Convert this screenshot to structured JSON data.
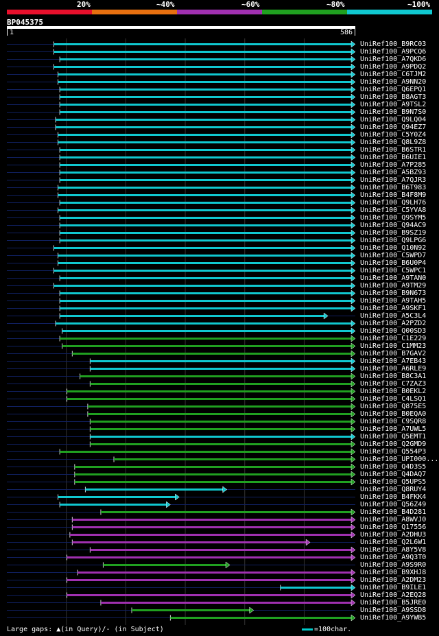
{
  "query_id": "BP045375",
  "colors": {
    "20": "#e8102c",
    "40": "#e87010",
    "60": "#a030b0",
    "80": "#20a020",
    "100": "#10c8d0",
    "query": "#ffffff",
    "background": "#000000",
    "unaligned": "#102060"
  },
  "legend": [
    {
      "label": "20%",
      "color": "#e8102c"
    },
    {
      "label": "~40%",
      "color": "#e87010"
    },
    {
      "label": "~60%",
      "color": "#a030b0"
    },
    {
      "label": "~80%",
      "color": "#20a020"
    },
    {
      "label": "~100%",
      "color": "#10c8d0"
    }
  ],
  "axis": {
    "start_label": "1",
    "end_label": "586"
  },
  "footer": {
    "gaps_text": "Large gaps: ▲(in Query)/- (in Subject)",
    "scale_text": "=100char."
  },
  "chart_data": {
    "type": "alignment",
    "query_length": 586,
    "hits": [
      {
        "name": "UniRef100_B9RC03",
        "start": 79,
        "end": 586,
        "identity": 100,
        "arrow": true
      },
      {
        "name": "UniRef100_A9PCQ6",
        "start": 79,
        "end": 586,
        "identity": 100,
        "arrow": true
      },
      {
        "name": "UniRef100_A7QKD6",
        "start": 89,
        "end": 586,
        "identity": 100,
        "arrow": true
      },
      {
        "name": "UniRef100_A9PDQ2",
        "start": 79,
        "end": 586,
        "identity": 100,
        "arrow": true
      },
      {
        "name": "UniRef100_C6TJM2",
        "start": 86,
        "end": 586,
        "identity": 100,
        "arrow": true
      },
      {
        "name": "UniRef100_A9NN20",
        "start": 86,
        "end": 586,
        "identity": 100,
        "arrow": true
      },
      {
        "name": "UniRef100_Q6EPQ1",
        "start": 89,
        "end": 586,
        "identity": 100,
        "arrow": true
      },
      {
        "name": "UniRef100_B8AGT3",
        "start": 89,
        "end": 586,
        "identity": 100,
        "arrow": true
      },
      {
        "name": "UniRef100_A9TSL2",
        "start": 89,
        "end": 586,
        "identity": 100,
        "arrow": true
      },
      {
        "name": "UniRef100_B9N7S0",
        "start": 89,
        "end": 586,
        "identity": 100,
        "arrow": true
      },
      {
        "name": "UniRef100_Q9LQ04",
        "start": 82,
        "end": 586,
        "identity": 100,
        "arrow": true
      },
      {
        "name": "UniRef100_Q94EZ7",
        "start": 82,
        "end": 586,
        "identity": 100,
        "arrow": true
      },
      {
        "name": "UniRef100_C5Y0Z4",
        "start": 86,
        "end": 586,
        "identity": 100,
        "arrow": true
      },
      {
        "name": "UniRef100_Q8L9Z8",
        "start": 86,
        "end": 586,
        "identity": 100,
        "arrow": true
      },
      {
        "name": "UniRef100_B6STR1",
        "start": 89,
        "end": 586,
        "identity": 100,
        "arrow": true
      },
      {
        "name": "UniRef100_B6UIE1",
        "start": 89,
        "end": 586,
        "identity": 100,
        "arrow": true
      },
      {
        "name": "UniRef100_A7P285",
        "start": 89,
        "end": 586,
        "identity": 100,
        "arrow": true
      },
      {
        "name": "UniRef100_A5BZ93",
        "start": 89,
        "end": 586,
        "identity": 100,
        "arrow": true
      },
      {
        "name": "UniRef100_A7QJR3",
        "start": 89,
        "end": 586,
        "identity": 100,
        "arrow": true
      },
      {
        "name": "UniRef100_B6T983",
        "start": 86,
        "end": 586,
        "identity": 100,
        "arrow": true
      },
      {
        "name": "UniRef100_B4F8M9",
        "start": 86,
        "end": 586,
        "identity": 100,
        "arrow": true
      },
      {
        "name": "UniRef100_Q9LH76",
        "start": 89,
        "end": 586,
        "identity": 100,
        "arrow": true
      },
      {
        "name": "UniRef100_C5YVA8",
        "start": 86,
        "end": 586,
        "identity": 100,
        "arrow": true
      },
      {
        "name": "UniRef100_Q9SYM5",
        "start": 89,
        "end": 586,
        "identity": 100,
        "arrow": true
      },
      {
        "name": "UniRef100_Q94AC9",
        "start": 89,
        "end": 586,
        "identity": 100,
        "arrow": true
      },
      {
        "name": "UniRef100_B9SZ19",
        "start": 89,
        "end": 586,
        "identity": 100,
        "arrow": true
      },
      {
        "name": "UniRef100_Q9LPG6",
        "start": 89,
        "end": 586,
        "identity": 100,
        "arrow": true
      },
      {
        "name": "UniRef100_Q10N92",
        "start": 79,
        "end": 586,
        "identity": 100,
        "arrow": true
      },
      {
        "name": "UniRef100_C5WPD7",
        "start": 86,
        "end": 586,
        "identity": 100,
        "arrow": true
      },
      {
        "name": "UniRef100_B6U0P4",
        "start": 86,
        "end": 586,
        "identity": 100,
        "arrow": true
      },
      {
        "name": "UniRef100_C5WPC1",
        "start": 79,
        "end": 586,
        "identity": 100,
        "arrow": true
      },
      {
        "name": "UniRef100_A9TAN0",
        "start": 89,
        "end": 586,
        "identity": 100,
        "arrow": true
      },
      {
        "name": "UniRef100_A9TM29",
        "start": 79,
        "end": 586,
        "identity": 100,
        "arrow": true
      },
      {
        "name": "UniRef100_B9N673",
        "start": 89,
        "end": 586,
        "identity": 100,
        "arrow": true
      },
      {
        "name": "UniRef100_A9TAH5",
        "start": 89,
        "end": 586,
        "identity": 100,
        "arrow": true
      },
      {
        "name": "UniRef100_A9SKF1",
        "start": 89,
        "end": 586,
        "identity": 100,
        "arrow": true
      },
      {
        "name": "UniRef100_A5C3L4",
        "start": 89,
        "end": 540,
        "identity": 100,
        "arrow": true
      },
      {
        "name": "UniRef100_A2PZD2",
        "start": 82,
        "end": 586,
        "identity": 100,
        "arrow": true
      },
      {
        "name": "UniRef100_Q00SD3",
        "start": 93,
        "end": 586,
        "identity": 100,
        "arrow": true
      },
      {
        "name": "UniRef100_C1E229",
        "start": 89,
        "end": 586,
        "identity": 80,
        "arrow": true
      },
      {
        "name": "UniRef100_C1MM23",
        "start": 93,
        "end": 586,
        "identity": 80,
        "arrow": true
      },
      {
        "name": "UniRef100_B7GAV2",
        "start": 110,
        "end": 586,
        "identity": 80,
        "arrow": true
      },
      {
        "name": "UniRef100_A7EB43",
        "start": 140,
        "end": 586,
        "identity": 100,
        "arrow": true
      },
      {
        "name": "UniRef100_A6RLE9",
        "start": 140,
        "end": 586,
        "identity": 100,
        "arrow": true
      },
      {
        "name": "UniRef100_B8C3A1",
        "start": 123,
        "end": 586,
        "identity": 80,
        "arrow": true
      },
      {
        "name": "UniRef100_C7ZAZ3",
        "start": 140,
        "end": 586,
        "identity": 80,
        "arrow": true
      },
      {
        "name": "UniRef100_B0EKL2",
        "start": 101,
        "end": 586,
        "identity": 80,
        "arrow": true
      },
      {
        "name": "UniRef100_C4LSQ1",
        "start": 101,
        "end": 586,
        "identity": 80,
        "arrow": true
      },
      {
        "name": "UniRef100_Q875E5",
        "start": 136,
        "end": 586,
        "identity": 80,
        "arrow": true
      },
      {
        "name": "UniRef100_B0EQA0",
        "start": 136,
        "end": 586,
        "identity": 80,
        "arrow": true
      },
      {
        "name": "UniRef100_C9SQR8",
        "start": 140,
        "end": 586,
        "identity": 80,
        "arrow": true
      },
      {
        "name": "UniRef100_A7UWL5",
        "start": 140,
        "end": 586,
        "identity": 80,
        "arrow": true
      },
      {
        "name": "UniRef100_Q5EMT1",
        "start": 140,
        "end": 586,
        "identity": 100,
        "arrow": true
      },
      {
        "name": "UniRef100_Q2GMD9",
        "start": 140,
        "end": 586,
        "identity": 80,
        "arrow": true
      },
      {
        "name": "UniRef100_Q554P3",
        "start": 89,
        "end": 586,
        "identity": 80,
        "arrow": true
      },
      {
        "name": "UniRef100_UPI000...",
        "start": 180,
        "end": 586,
        "identity": 80,
        "arrow": true
      },
      {
        "name": "UniRef100_Q4D3S5",
        "start": 114,
        "end": 586,
        "identity": 80,
        "arrow": true
      },
      {
        "name": "UniRef100_Q4DAQ7",
        "start": 114,
        "end": 586,
        "identity": 80,
        "arrow": true
      },
      {
        "name": "UniRef100_Q5UPS5",
        "start": 114,
        "end": 586,
        "identity": 80,
        "arrow": true
      },
      {
        "name": "UniRef100_Q8RUY4",
        "start": 132,
        "end": 370,
        "identity": 100,
        "arrow": true
      },
      {
        "name": "UniRef100_B4FKK4",
        "start": 86,
        "end": 290,
        "identity": 100,
        "arrow": true
      },
      {
        "name": "UniRef100_Q56Z49",
        "start": 89,
        "end": 275,
        "identity": 100,
        "arrow": true
      },
      {
        "name": "UniRef100_B4D281",
        "start": 158,
        "end": 586,
        "identity": 80,
        "arrow": true
      },
      {
        "name": "UniRef100_A8WVJ0",
        "start": 110,
        "end": 586,
        "identity": 60,
        "arrow": true
      },
      {
        "name": "UniRef100_Q17556",
        "start": 110,
        "end": 586,
        "identity": 60,
        "arrow": true
      },
      {
        "name": "UniRef100_A2DHU3",
        "start": 106,
        "end": 586,
        "identity": 60,
        "arrow": true
      },
      {
        "name": "UniRef100_Q2L6W1",
        "start": 110,
        "end": 510,
        "identity": 60,
        "arrow": true
      },
      {
        "name": "UniRef100_A8Y5V8",
        "start": 140,
        "end": 586,
        "identity": 60,
        "arrow": true
      },
      {
        "name": "UniRef100_A9Q3T0",
        "start": 101,
        "end": 586,
        "identity": 60,
        "arrow": true
      },
      {
        "name": "UniRef100_A9S9R0",
        "start": 162,
        "end": 375,
        "identity": 80,
        "arrow": true
      },
      {
        "name": "UniRef100_B9XHJ8",
        "start": 119,
        "end": 586,
        "identity": 60,
        "arrow": true
      },
      {
        "name": "UniRef100_A2DM23",
        "start": 101,
        "end": 586,
        "identity": 60,
        "arrow": true
      },
      {
        "name": "UniRef100_B9ILE1",
        "start": 460,
        "end": 586,
        "identity": 100,
        "arrow": true
      },
      {
        "name": "UniRef100_A2EQ28",
        "start": 101,
        "end": 586,
        "identity": 60,
        "arrow": true
      },
      {
        "name": "UniRef100_B5JRE0",
        "start": 158,
        "end": 586,
        "identity": 60,
        "arrow": true
      },
      {
        "name": "UniRef100_A9SSD8",
        "start": 210,
        "end": 415,
        "identity": 80,
        "arrow": true
      },
      {
        "name": "UniRef100_A9YWB5",
        "start": 275,
        "end": 586,
        "identity": 80,
        "arrow": true
      }
    ]
  }
}
